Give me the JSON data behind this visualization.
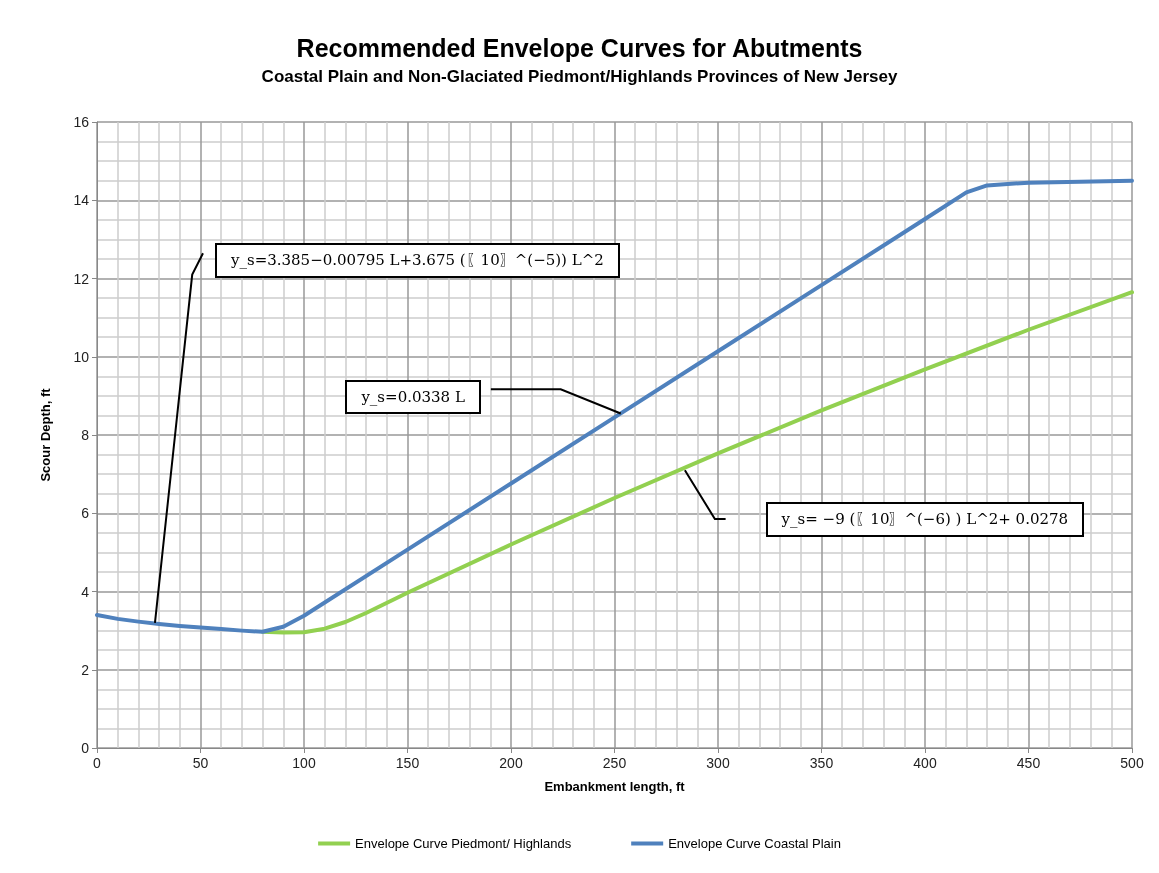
{
  "chart_data": {
    "type": "line",
    "title": "Recommended Envelope Curves for Abutments",
    "subtitle": "Coastal Plain and Non-Glaciated Piedmont/Highlands Provinces of New Jersey",
    "xlabel": "Embankment length, ft",
    "ylabel": "Scour Depth, ft",
    "series": [
      {
        "name": "Envelope Curve Piedmont/ Highlands",
        "color": "#92d050",
        "x": [
          80,
          90,
          100,
          110,
          120,
          130,
          150,
          200,
          250,
          300,
          350,
          400,
          450,
          500
        ],
        "values": [
          2.97,
          2.95,
          2.96,
          3.05,
          3.22,
          3.45,
          3.97,
          5.2,
          6.39,
          7.53,
          8.63,
          9.68,
          10.69,
          11.65
        ]
      },
      {
        "name": "Envelope Curve Coastal Plain",
        "color": "#4f81bd",
        "x": [
          0,
          10,
          20,
          30,
          40,
          50,
          60,
          70,
          80,
          90,
          100,
          150,
          200,
          250,
          300,
          350,
          400,
          420,
          430,
          450,
          500
        ],
        "values": [
          3.4,
          3.3,
          3.23,
          3.17,
          3.12,
          3.08,
          3.04,
          3.0,
          2.97,
          3.1,
          3.38,
          5.07,
          6.76,
          8.45,
          10.14,
          11.83,
          13.52,
          14.2,
          14.38,
          14.45,
          14.5
        ]
      }
    ],
    "annotations": [
      "y_s=3.385−0.00795 L+3.675 (〖10〗^(−5)) L^2",
      "y_s=0.0338 L",
      "y_s= −9 (〖10〗^(−6) )  L^2+ 0.0278"
    ],
    "xlim": [
      0,
      500
    ],
    "xticks": [
      0,
      50,
      100,
      150,
      200,
      250,
      300,
      350,
      400,
      450,
      500
    ],
    "ylim": [
      0,
      16
    ],
    "yticks": [
      0,
      2,
      4,
      6,
      8,
      10,
      12,
      14,
      16
    ],
    "grid": true,
    "legend": "bottom",
    "marker": "none",
    "line_style": "solid"
  }
}
